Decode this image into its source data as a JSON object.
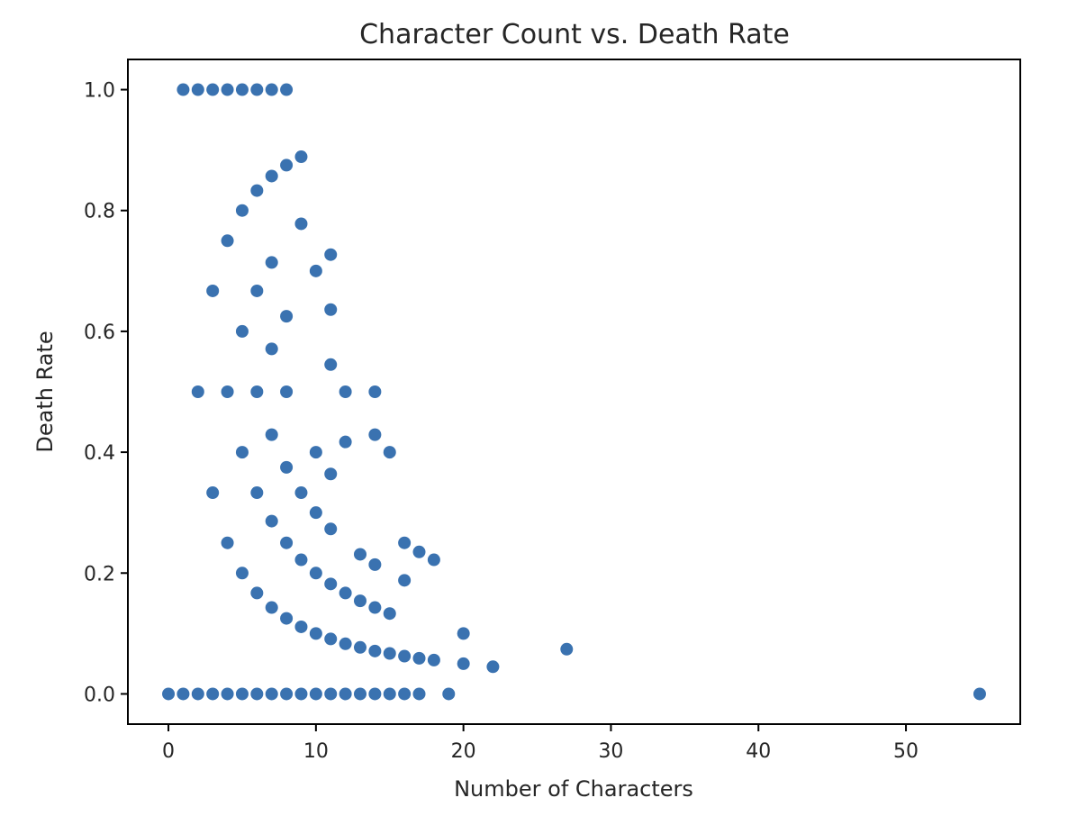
{
  "chart_data": {
    "type": "scatter",
    "title": "Character Count vs. Death Rate",
    "xlabel": "Number of Characters",
    "ylabel": "Death Rate",
    "xlim": [
      -2.75,
      57.75
    ],
    "ylim": [
      -0.05,
      1.05
    ],
    "xticks": [
      0,
      10,
      20,
      30,
      40,
      50
    ],
    "yticks": [
      0.0,
      0.2,
      0.4,
      0.6,
      0.8,
      1.0
    ],
    "xtick_labels": [
      "0",
      "10",
      "20",
      "30",
      "40",
      "50"
    ],
    "ytick_labels": [
      "0.0",
      "0.2",
      "0.4",
      "0.6",
      "0.8",
      "1.0"
    ],
    "grid": false,
    "marker_color": "#3a72b0",
    "series": [
      {
        "points": [
          [
            1,
            1.0
          ],
          [
            2,
            1.0
          ],
          [
            3,
            1.0
          ],
          [
            4,
            1.0
          ],
          [
            5,
            1.0
          ],
          [
            6,
            1.0
          ],
          [
            7,
            1.0
          ],
          [
            8,
            1.0
          ],
          [
            5,
            0.8
          ],
          [
            6,
            0.833
          ],
          [
            7,
            0.857
          ],
          [
            8,
            0.875
          ],
          [
            9,
            0.889
          ],
          [
            9,
            0.778
          ],
          [
            4,
            0.75
          ],
          [
            11,
            0.727
          ],
          [
            7,
            0.714
          ],
          [
            10,
            0.7
          ],
          [
            3,
            0.667
          ],
          [
            6,
            0.667
          ],
          [
            11,
            0.636
          ],
          [
            8,
            0.625
          ],
          [
            5,
            0.6
          ],
          [
            7,
            0.571
          ],
          [
            11,
            0.545
          ],
          [
            2,
            0.5
          ],
          [
            4,
            0.5
          ],
          [
            6,
            0.5
          ],
          [
            8,
            0.5
          ],
          [
            12,
            0.5
          ],
          [
            14,
            0.5
          ],
          [
            7,
            0.429
          ],
          [
            14,
            0.429
          ],
          [
            12,
            0.417
          ],
          [
            5,
            0.4
          ],
          [
            10,
            0.4
          ],
          [
            15,
            0.4
          ],
          [
            8,
            0.375
          ],
          [
            11,
            0.364
          ],
          [
            3,
            0.333
          ],
          [
            6,
            0.333
          ],
          [
            9,
            0.333
          ],
          [
            10,
            0.3
          ],
          [
            7,
            0.286
          ],
          [
            11,
            0.273
          ],
          [
            4,
            0.25
          ],
          [
            8,
            0.25
          ],
          [
            16,
            0.25
          ],
          [
            17,
            0.235
          ],
          [
            13,
            0.231
          ],
          [
            18,
            0.222
          ],
          [
            9,
            0.222
          ],
          [
            14,
            0.214
          ],
          [
            5,
            0.2
          ],
          [
            10,
            0.2
          ],
          [
            16,
            0.188
          ],
          [
            11,
            0.182
          ],
          [
            6,
            0.167
          ],
          [
            12,
            0.167
          ],
          [
            13,
            0.154
          ],
          [
            7,
            0.143
          ],
          [
            14,
            0.143
          ],
          [
            15,
            0.133
          ],
          [
            8,
            0.125
          ],
          [
            9,
            0.111
          ],
          [
            10,
            0.1
          ],
          [
            20,
            0.1
          ],
          [
            11,
            0.091
          ],
          [
            12,
            0.083
          ],
          [
            13,
            0.077
          ],
          [
            27,
            0.074
          ],
          [
            14,
            0.071
          ],
          [
            15,
            0.067
          ],
          [
            16,
            0.0625
          ],
          [
            17,
            0.059
          ],
          [
            18,
            0.056
          ],
          [
            20,
            0.05
          ],
          [
            22,
            0.045
          ],
          [
            0,
            0.0
          ],
          [
            1,
            0.0
          ],
          [
            2,
            0.0
          ],
          [
            3,
            0.0
          ],
          [
            4,
            0.0
          ],
          [
            5,
            0.0
          ],
          [
            6,
            0.0
          ],
          [
            7,
            0.0
          ],
          [
            8,
            0.0
          ],
          [
            9,
            0.0
          ],
          [
            10,
            0.0
          ],
          [
            11,
            0.0
          ],
          [
            12,
            0.0
          ],
          [
            13,
            0.0
          ],
          [
            14,
            0.0
          ],
          [
            15,
            0.0
          ],
          [
            16,
            0.0
          ],
          [
            17,
            0.0
          ],
          [
            19,
            0.0
          ],
          [
            55,
            0.0
          ]
        ]
      }
    ]
  }
}
